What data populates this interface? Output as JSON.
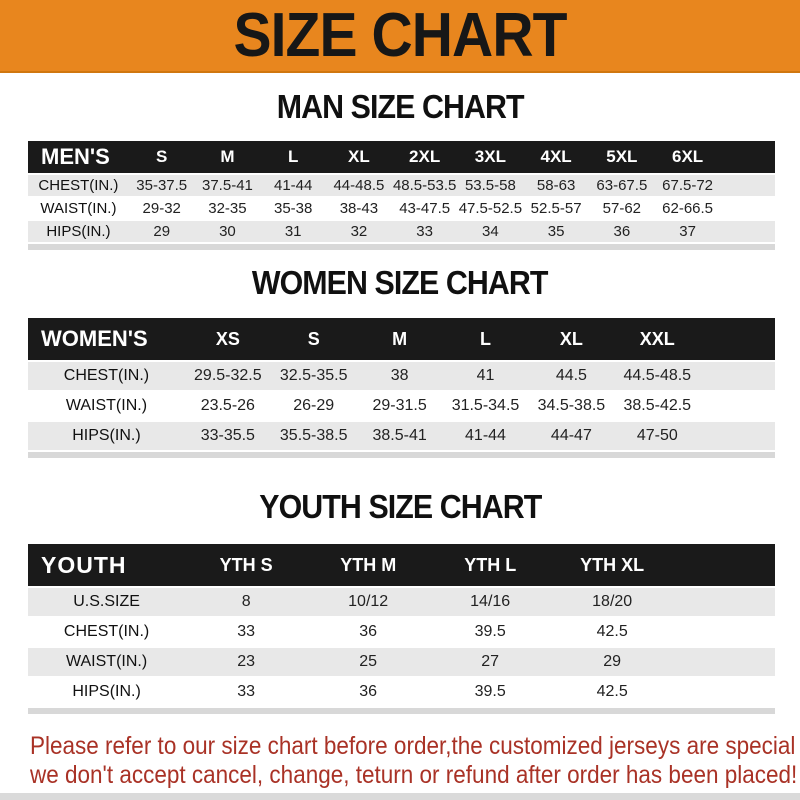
{
  "banner": {
    "title": "SIZE CHART"
  },
  "colors": {
    "banner_bg": "#E8861E",
    "header_bar_bg": "#1a1a1a",
    "stripe_gray": "#e8e8e8",
    "footer_red": "#A93226"
  },
  "sections": [
    {
      "title": "MAN SIZE CHART",
      "header_label": "MEN'S",
      "columns": [
        "S",
        "M",
        "L",
        "XL",
        "2XL",
        "3XL",
        "4XL",
        "5XL",
        "6XL"
      ],
      "rows": [
        {
          "label": "CHEST(IN.)",
          "values": [
            "35-37.5",
            "37.5-41",
            "41-44",
            "44-48.5",
            "48.5-53.5",
            "53.5-58",
            "58-63",
            "63-67.5",
            "67.5-72"
          ]
        },
        {
          "label": "WAIST(IN.)",
          "values": [
            "29-32",
            "32-35",
            "35-38",
            "38-43",
            "43-47.5",
            "47.5-52.5",
            "52.5-57",
            "57-62",
            "62-66.5"
          ]
        },
        {
          "label": "HIPS(IN.)",
          "values": [
            "29",
            "30",
            "31",
            "32",
            "33",
            "34",
            "35",
            "36",
            "37"
          ]
        }
      ]
    },
    {
      "title": "WOMEN SIZE CHART",
      "header_label": "WOMEN'S",
      "columns": [
        "XS",
        "S",
        "M",
        "L",
        "XL",
        "XXL"
      ],
      "rows": [
        {
          "label": "CHEST(IN.)",
          "values": [
            "29.5-32.5",
            "32.5-35.5",
            "38",
            "41",
            "44.5",
            "44.5-48.5"
          ]
        },
        {
          "label": "WAIST(IN.)",
          "values": [
            "23.5-26",
            "26-29",
            "29-31.5",
            "31.5-34.5",
            "34.5-38.5",
            "38.5-42.5"
          ]
        },
        {
          "label": "HIPS(IN.)",
          "values": [
            "33-35.5",
            "35.5-38.5",
            "38.5-41",
            "41-44",
            "44-47",
            "47-50"
          ]
        }
      ]
    },
    {
      "title": "YOUTH SIZE CHART",
      "header_label": "YOUTH",
      "columns": [
        "YTH S",
        "YTH M",
        "YTH L",
        "YTH XL"
      ],
      "rows": [
        {
          "label": "U.S.SIZE",
          "values": [
            "8",
            "10/12",
            "14/16",
            "18/20"
          ]
        },
        {
          "label": "CHEST(IN.)",
          "values": [
            "33",
            "36",
            "39.5",
            "42.5"
          ]
        },
        {
          "label": "WAIST(IN.)",
          "values": [
            "23",
            "25",
            "27",
            "29"
          ]
        },
        {
          "label": "HIPS(IN.)",
          "values": [
            "33",
            "36",
            "39.5",
            "42.5"
          ]
        }
      ]
    }
  ],
  "footer": {
    "line1": "Please refer to our size chart before order,the customized jerseys are special products,",
    "line2": "we don't accept cancel, change, teturn or refund after order has been placed!"
  }
}
